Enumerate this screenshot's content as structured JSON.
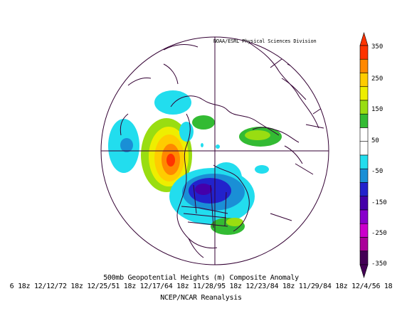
{
  "map": {
    "credit": "NOAA/ESRL Physical Sciences Division",
    "title": "500mb Geopotential Heights (m)   Composite Anomaly",
    "dates": "6 18z 12/12/72 18z 12/25/51 18z 12/17/64 18z 11/28/95 18z 12/23/84 18z 11/29/84 18z 12/4/56 18",
    "source": "NCEP/NCAR Reanalysis",
    "projection": "north-polar-stereographic"
  },
  "colorbar": {
    "ticks": [
      "350",
      "250",
      "150",
      "50",
      "-50",
      "-150",
      "-250",
      "-350"
    ],
    "colors": [
      "#ff3300",
      "#ff8800",
      "#ffcc00",
      "#eeee00",
      "#99dd11",
      "#33bb33",
      "#ffffff",
      "#ffffff",
      "#22ddee",
      "#1a8fd6",
      "#2222cc",
      "#4400aa",
      "#8800cc",
      "#cc00cc",
      "#aa0099",
      "#440055"
    ]
  }
}
